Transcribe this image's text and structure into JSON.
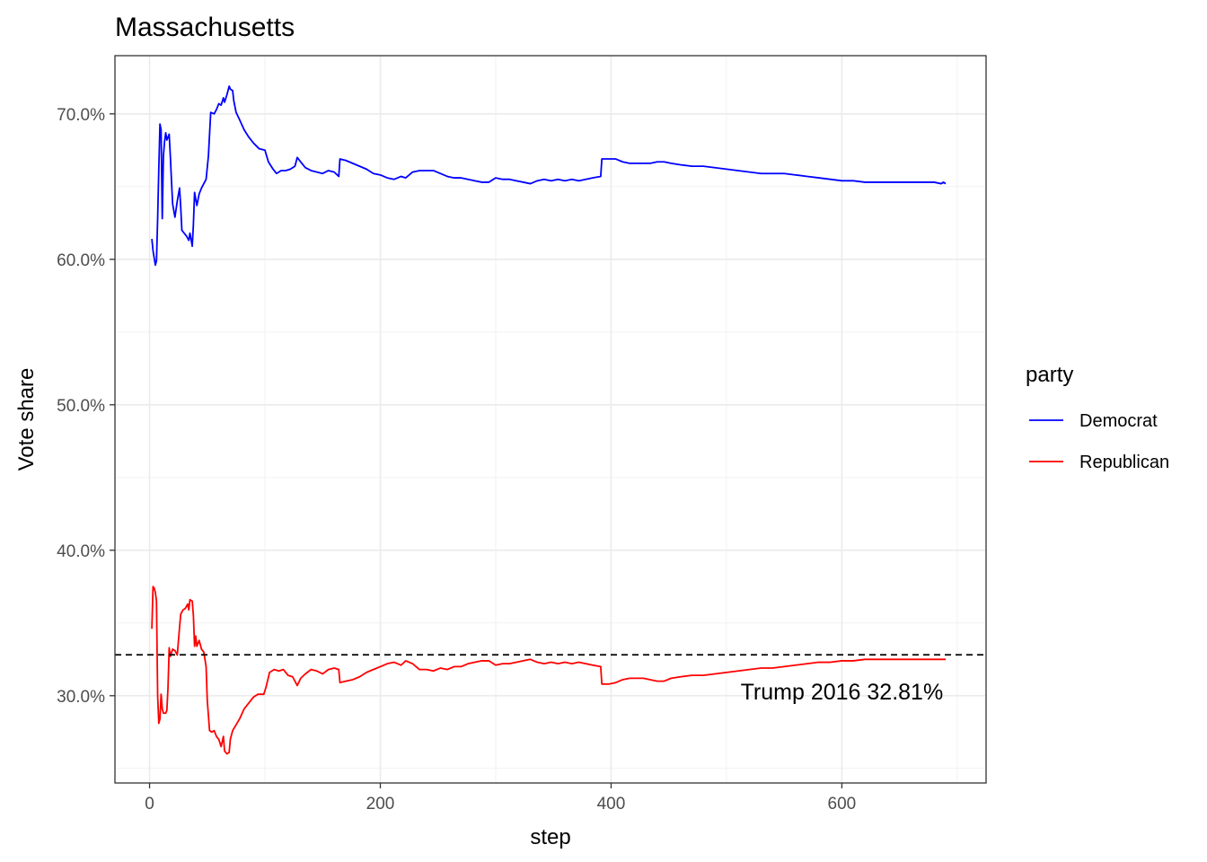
{
  "chart_data": {
    "type": "line",
    "title": "Massachusetts",
    "xlabel": "step",
    "ylabel": "Vote share",
    "xlim": [
      -30,
      725
    ],
    "ylim": [
      0.24,
      0.74
    ],
    "x_ticks": [
      0,
      200,
      400,
      600
    ],
    "x_tick_labels": [
      "0",
      "200",
      "400",
      "600"
    ],
    "y_ticks": [
      0.3,
      0.4,
      0.5,
      0.6,
      0.7
    ],
    "y_tick_labels": [
      "30.0%",
      "40.0%",
      "50.0%",
      "60.0%",
      "70.0%"
    ],
    "grid": true,
    "legend": {
      "title": "party",
      "position": "right",
      "entries": [
        {
          "label": "Democrat",
          "color": "#0000ff"
        },
        {
          "label": "Republican",
          "color": "#ff0000"
        }
      ]
    },
    "reference_line": {
      "y": 0.3281,
      "style": "dashed",
      "color": "#000000"
    },
    "annotation": {
      "text": "Trump 2016 32.81%",
      "x": 600,
      "y": 0.3
    },
    "series": [
      {
        "name": "Democrat",
        "color": "#0000ff",
        "points": [
          [
            2,
            0.614
          ],
          [
            3,
            0.606
          ],
          [
            5,
            0.596
          ],
          [
            6,
            0.599
          ],
          [
            7,
            0.628
          ],
          [
            8,
            0.662
          ],
          [
            9,
            0.693
          ],
          [
            10,
            0.689
          ],
          [
            11,
            0.628
          ],
          [
            12,
            0.671
          ],
          [
            13,
            0.681
          ],
          [
            14,
            0.687
          ],
          [
            15,
            0.682
          ],
          [
            17,
            0.686
          ],
          [
            18,
            0.671
          ],
          [
            19,
            0.654
          ],
          [
            20,
            0.638
          ],
          [
            22,
            0.629
          ],
          [
            24,
            0.64
          ],
          [
            26,
            0.649
          ],
          [
            27,
            0.636
          ],
          [
            28,
            0.62
          ],
          [
            30,
            0.618
          ],
          [
            32,
            0.616
          ],
          [
            34,
            0.613
          ],
          [
            35,
            0.618
          ],
          [
            37,
            0.609
          ],
          [
            38,
            0.624
          ],
          [
            39,
            0.646
          ],
          [
            41,
            0.637
          ],
          [
            43,
            0.645
          ],
          [
            45,
            0.649
          ],
          [
            47,
            0.652
          ],
          [
            49,
            0.655
          ],
          [
            51,
            0.671
          ],
          [
            53,
            0.701
          ],
          [
            56,
            0.7
          ],
          [
            58,
            0.703
          ],
          [
            60,
            0.707
          ],
          [
            62,
            0.706
          ],
          [
            64,
            0.711
          ],
          [
            65,
            0.708
          ],
          [
            67,
            0.713
          ],
          [
            69,
            0.719
          ],
          [
            70,
            0.717
          ],
          [
            72,
            0.716
          ],
          [
            73,
            0.709
          ],
          [
            75,
            0.701
          ],
          [
            78,
            0.696
          ],
          [
            82,
            0.689
          ],
          [
            86,
            0.684
          ],
          [
            90,
            0.68
          ],
          [
            95,
            0.676
          ],
          [
            100,
            0.675
          ],
          [
            103,
            0.667
          ],
          [
            107,
            0.662
          ],
          [
            110,
            0.659
          ],
          [
            114,
            0.661
          ],
          [
            118,
            0.661
          ],
          [
            122,
            0.662
          ],
          [
            126,
            0.664
          ],
          [
            128,
            0.67
          ],
          [
            131,
            0.667
          ],
          [
            135,
            0.663
          ],
          [
            140,
            0.661
          ],
          [
            145,
            0.66
          ],
          [
            150,
            0.659
          ],
          [
            155,
            0.661
          ],
          [
            160,
            0.66
          ],
          [
            164,
            0.657
          ],
          [
            165,
            0.669
          ],
          [
            170,
            0.668
          ],
          [
            176,
            0.666
          ],
          [
            182,
            0.664
          ],
          [
            188,
            0.662
          ],
          [
            194,
            0.659
          ],
          [
            200,
            0.658
          ],
          [
            206,
            0.656
          ],
          [
            212,
            0.655
          ],
          [
            218,
            0.657
          ],
          [
            222,
            0.656
          ],
          [
            228,
            0.66
          ],
          [
            234,
            0.661
          ],
          [
            240,
            0.661
          ],
          [
            246,
            0.661
          ],
          [
            252,
            0.659
          ],
          [
            258,
            0.657
          ],
          [
            264,
            0.656
          ],
          [
            270,
            0.656
          ],
          [
            276,
            0.655
          ],
          [
            282,
            0.654
          ],
          [
            288,
            0.653
          ],
          [
            294,
            0.653
          ],
          [
            300,
            0.656
          ],
          [
            306,
            0.655
          ],
          [
            312,
            0.655
          ],
          [
            318,
            0.654
          ],
          [
            324,
            0.653
          ],
          [
            330,
            0.652
          ],
          [
            336,
            0.654
          ],
          [
            342,
            0.655
          ],
          [
            348,
            0.654
          ],
          [
            354,
            0.655
          ],
          [
            360,
            0.654
          ],
          [
            366,
            0.655
          ],
          [
            372,
            0.654
          ],
          [
            378,
            0.655
          ],
          [
            384,
            0.656
          ],
          [
            391,
            0.657
          ],
          [
            392,
            0.669
          ],
          [
            398,
            0.669
          ],
          [
            404,
            0.669
          ],
          [
            410,
            0.667
          ],
          [
            416,
            0.666
          ],
          [
            422,
            0.666
          ],
          [
            428,
            0.666
          ],
          [
            434,
            0.666
          ],
          [
            440,
            0.667
          ],
          [
            446,
            0.667
          ],
          [
            452,
            0.666
          ],
          [
            460,
            0.665
          ],
          [
            470,
            0.664
          ],
          [
            480,
            0.664
          ],
          [
            490,
            0.663
          ],
          [
            500,
            0.662
          ],
          [
            510,
            0.661
          ],
          [
            520,
            0.66
          ],
          [
            530,
            0.659
          ],
          [
            540,
            0.659
          ],
          [
            550,
            0.659
          ],
          [
            560,
            0.658
          ],
          [
            570,
            0.657
          ],
          [
            580,
            0.656
          ],
          [
            590,
            0.655
          ],
          [
            600,
            0.654
          ],
          [
            610,
            0.654
          ],
          [
            620,
            0.653
          ],
          [
            640,
            0.653
          ],
          [
            660,
            0.653
          ],
          [
            680,
            0.653
          ],
          [
            686,
            0.652
          ],
          [
            688,
            0.653
          ],
          [
            690,
            0.652
          ]
        ]
      },
      {
        "name": "Republican",
        "color": "#ff0000",
        "points": [
          [
            2,
            0.346
          ],
          [
            3,
            0.375
          ],
          [
            4,
            0.374
          ],
          [
            5,
            0.371
          ],
          [
            6,
            0.365
          ],
          [
            7,
            0.3
          ],
          [
            8,
            0.281
          ],
          [
            9,
            0.284
          ],
          [
            10,
            0.301
          ],
          [
            11,
            0.291
          ],
          [
            12,
            0.288
          ],
          [
            14,
            0.288
          ],
          [
            15,
            0.29
          ],
          [
            16,
            0.306
          ],
          [
            17,
            0.333
          ],
          [
            18,
            0.327
          ],
          [
            20,
            0.332
          ],
          [
            22,
            0.331
          ],
          [
            24,
            0.328
          ],
          [
            26,
            0.347
          ],
          [
            27,
            0.356
          ],
          [
            29,
            0.359
          ],
          [
            31,
            0.36
          ],
          [
            33,
            0.363
          ],
          [
            34,
            0.359
          ],
          [
            35,
            0.366
          ],
          [
            37,
            0.365
          ],
          [
            38,
            0.355
          ],
          [
            39,
            0.334
          ],
          [
            40,
            0.341
          ],
          [
            41,
            0.334
          ],
          [
            43,
            0.338
          ],
          [
            45,
            0.332
          ],
          [
            47,
            0.33
          ],
          [
            49,
            0.32
          ],
          [
            50,
            0.297
          ],
          [
            52,
            0.276
          ],
          [
            54,
            0.275
          ],
          [
            56,
            0.276
          ],
          [
            58,
            0.272
          ],
          [
            60,
            0.27
          ],
          [
            62,
            0.265
          ],
          [
            64,
            0.272
          ],
          [
            65,
            0.262
          ],
          [
            67,
            0.26
          ],
          [
            69,
            0.261
          ],
          [
            70,
            0.27
          ],
          [
            72,
            0.276
          ],
          [
            75,
            0.28
          ],
          [
            78,
            0.284
          ],
          [
            82,
            0.291
          ],
          [
            86,
            0.295
          ],
          [
            90,
            0.299
          ],
          [
            94,
            0.301
          ],
          [
            99,
            0.301
          ],
          [
            101,
            0.306
          ],
          [
            104,
            0.316
          ],
          [
            108,
            0.318
          ],
          [
            112,
            0.317
          ],
          [
            116,
            0.318
          ],
          [
            120,
            0.314
          ],
          [
            124,
            0.313
          ],
          [
            128,
            0.307
          ],
          [
            131,
            0.312
          ],
          [
            135,
            0.315
          ],
          [
            140,
            0.318
          ],
          [
            145,
            0.317
          ],
          [
            150,
            0.315
          ],
          [
            155,
            0.318
          ],
          [
            160,
            0.319
          ],
          [
            164,
            0.318
          ],
          [
            165,
            0.309
          ],
          [
            170,
            0.31
          ],
          [
            176,
            0.311
          ],
          [
            182,
            0.313
          ],
          [
            188,
            0.316
          ],
          [
            194,
            0.318
          ],
          [
            200,
            0.32
          ],
          [
            206,
            0.322
          ],
          [
            212,
            0.323
          ],
          [
            218,
            0.321
          ],
          [
            222,
            0.324
          ],
          [
            228,
            0.322
          ],
          [
            234,
            0.318
          ],
          [
            240,
            0.318
          ],
          [
            246,
            0.317
          ],
          [
            252,
            0.319
          ],
          [
            258,
            0.318
          ],
          [
            264,
            0.32
          ],
          [
            270,
            0.32
          ],
          [
            276,
            0.322
          ],
          [
            282,
            0.323
          ],
          [
            288,
            0.324
          ],
          [
            294,
            0.324
          ],
          [
            300,
            0.321
          ],
          [
            306,
            0.322
          ],
          [
            312,
            0.322
          ],
          [
            318,
            0.323
          ],
          [
            324,
            0.324
          ],
          [
            330,
            0.325
          ],
          [
            336,
            0.323
          ],
          [
            342,
            0.322
          ],
          [
            348,
            0.323
          ],
          [
            354,
            0.322
          ],
          [
            360,
            0.323
          ],
          [
            366,
            0.322
          ],
          [
            372,
            0.323
          ],
          [
            378,
            0.322
          ],
          [
            384,
            0.321
          ],
          [
            391,
            0.32
          ],
          [
            392,
            0.308
          ],
          [
            398,
            0.308
          ],
          [
            404,
            0.309
          ],
          [
            410,
            0.311
          ],
          [
            416,
            0.312
          ],
          [
            422,
            0.312
          ],
          [
            428,
            0.312
          ],
          [
            434,
            0.311
          ],
          [
            440,
            0.31
          ],
          [
            446,
            0.31
          ],
          [
            452,
            0.312
          ],
          [
            460,
            0.313
          ],
          [
            470,
            0.314
          ],
          [
            480,
            0.314
          ],
          [
            490,
            0.315
          ],
          [
            500,
            0.316
          ],
          [
            510,
            0.317
          ],
          [
            520,
            0.318
          ],
          [
            530,
            0.319
          ],
          [
            540,
            0.319
          ],
          [
            550,
            0.32
          ],
          [
            560,
            0.321
          ],
          [
            570,
            0.322
          ],
          [
            580,
            0.323
          ],
          [
            590,
            0.323
          ],
          [
            600,
            0.324
          ],
          [
            610,
            0.324
          ],
          [
            620,
            0.325
          ],
          [
            640,
            0.325
          ],
          [
            660,
            0.325
          ],
          [
            680,
            0.325
          ],
          [
            690,
            0.325
          ]
        ]
      }
    ]
  }
}
